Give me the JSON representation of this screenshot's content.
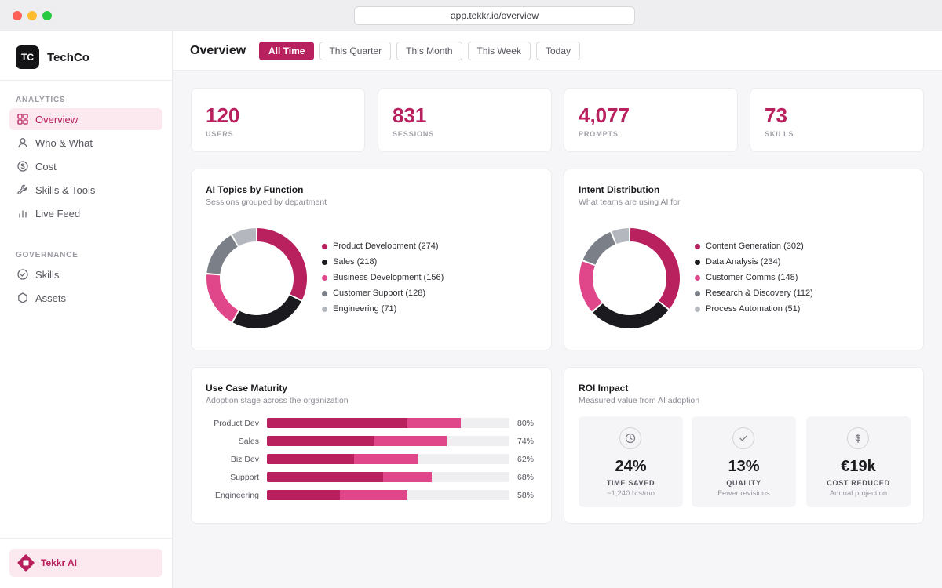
{
  "browser": {
    "url": "app.tekkr.io/overview"
  },
  "brand": {
    "logo_text": "TC",
    "name": "TechCo"
  },
  "sidebar": {
    "analytics_label": "ANALYTICS",
    "analytics_items": [
      {
        "label": "Overview",
        "icon": "grid-icon",
        "active": true
      },
      {
        "label": "Who & What",
        "icon": "user-icon"
      },
      {
        "label": "Cost",
        "icon": "coin-icon"
      },
      {
        "label": "Skills & Tools",
        "icon": "wrench-icon"
      },
      {
        "label": "Live Feed",
        "icon": "bar-chart-icon"
      }
    ],
    "governance_label": "GOVERNANCE",
    "governance_items": [
      {
        "label": "Skills",
        "icon": "check-circle-icon"
      },
      {
        "label": "Assets",
        "icon": "hexagon-icon"
      }
    ],
    "assistant_label": "Tekkr AI"
  },
  "header": {
    "title": "Overview",
    "filters": [
      "All Time",
      "This Quarter",
      "This Month",
      "This Week",
      "Today"
    ],
    "active_filter": "All Time"
  },
  "stats": [
    {
      "value": "120",
      "label": "USERS"
    },
    {
      "value": "831",
      "label": "SESSIONS"
    },
    {
      "value": "4,077",
      "label": "PROMPTS"
    },
    {
      "value": "73",
      "label": "SKILLS"
    }
  ],
  "topics": {
    "title": "AI Topics by Function",
    "subtitle": "Sessions grouped by department",
    "segments": [
      {
        "label": "Product Development (274)",
        "value": 274,
        "color": "#b8205e"
      },
      {
        "label": "Sales (218)",
        "value": 218,
        "color": "#1b1b1f"
      },
      {
        "label": "Business Development (156)",
        "value": 156,
        "color": "#e0468a"
      },
      {
        "label": "Customer Support (128)",
        "value": 128,
        "color": "#7b8088"
      },
      {
        "label": "Engineering (71)",
        "value": 71,
        "color": "#b4b8be"
      }
    ]
  },
  "intent": {
    "title": "Intent Distribution",
    "subtitle": "What teams are using AI for",
    "segments": [
      {
        "label": "Content Generation (302)",
        "value": 302,
        "color": "#b8205e"
      },
      {
        "label": "Data Analysis (234)",
        "value": 234,
        "color": "#1b1b1f"
      },
      {
        "label": "Customer Comms (148)",
        "value": 148,
        "color": "#e0468a"
      },
      {
        "label": "Research & Discovery (112)",
        "value": 112,
        "color": "#7b8088"
      },
      {
        "label": "Process Automation (51)",
        "value": 51,
        "color": "#b4b8be"
      }
    ]
  },
  "maturity": {
    "title": "Use Case Maturity",
    "subtitle": "Adoption stage across the organization",
    "rows": [
      {
        "label": "Product Dev",
        "value": 80,
        "pct": "80%",
        "core": 58
      },
      {
        "label": "Sales",
        "value": 74,
        "pct": "74%",
        "core": 44
      },
      {
        "label": "Biz Dev",
        "value": 62,
        "pct": "62%",
        "core": 36
      },
      {
        "label": "Support",
        "value": 68,
        "pct": "68%",
        "core": 48
      },
      {
        "label": "Engineering",
        "value": 58,
        "pct": "58%",
        "core": 30
      }
    ]
  },
  "roi": {
    "title": "ROI Impact",
    "subtitle": "Measured value from AI adoption",
    "tiles": [
      {
        "icon": "clock-icon",
        "value": "24%",
        "label": "TIME SAVED",
        "sub": "~1,240 hrs/mo"
      },
      {
        "icon": "check-icon",
        "value": "13%",
        "label": "QUALITY",
        "sub": "Fewer revisions"
      },
      {
        "icon": "dollar-icon",
        "value": "€19k",
        "label": "COST REDUCED",
        "sub": "Annual projection"
      }
    ]
  },
  "colors": {
    "accent": "#b8205e",
    "accent_light": "#e0468a",
    "accent_bg": "#fbe9ef"
  }
}
